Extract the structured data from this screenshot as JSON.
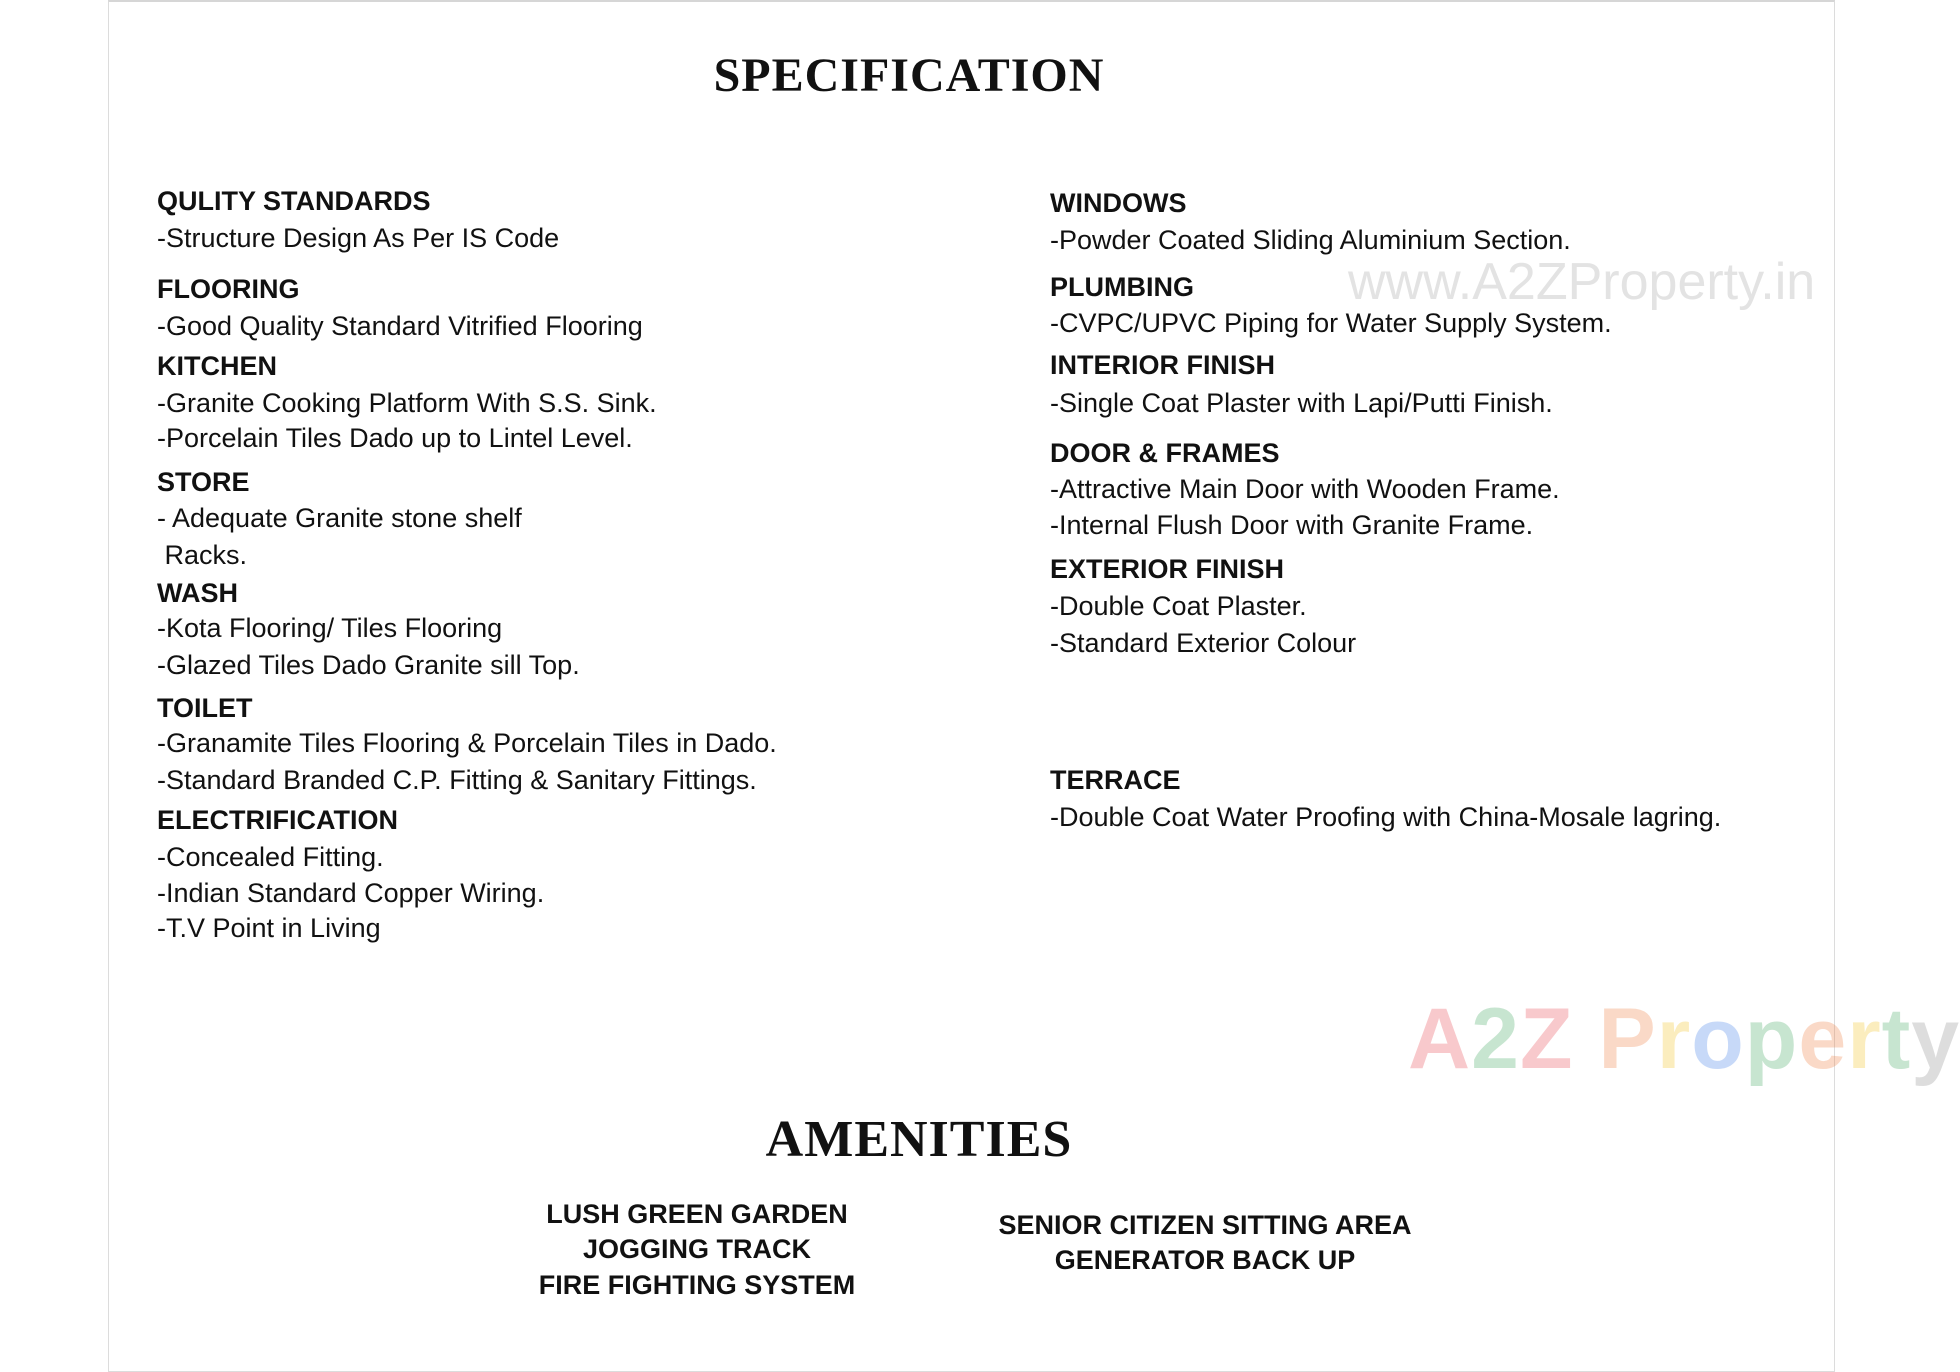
{
  "title": "SPECIFICATION",
  "left_sections": [
    {
      "heading": "QULITY STANDARDS",
      "lines": [
        "-Structure Design As Per IS Code"
      ]
    },
    {
      "heading": "FLOORING",
      "lines": [
        "-Good Quality Standard Vitrified Flooring"
      ]
    },
    {
      "heading": "KITCHEN",
      "lines": [
        "-Granite Cooking Platform With S.S. Sink.",
        "-Porcelain Tiles Dado up to Lintel Level."
      ]
    },
    {
      "heading": "STORE",
      "lines": [
        "- Adequate Granite stone shelf",
        " Racks."
      ]
    },
    {
      "heading": "WASH",
      "lines": [
        "-Kota Flooring/ Tiles Flooring",
        "-Glazed Tiles Dado Granite sill Top."
      ]
    },
    {
      "heading": "TOILET",
      "lines": [
        "-Granamite Tiles Flooring & Porcelain Tiles in Dado.",
        "-Standard Branded C.P. Fitting & Sanitary Fittings."
      ]
    },
    {
      "heading": "ELECTRIFICATION",
      "lines": [
        "-Concealed Fitting.",
        "-Indian Standard Copper Wiring.",
        "-T.V Point in Living"
      ]
    }
  ],
  "right_sections": [
    {
      "heading": "WINDOWS",
      "lines": [
        "-Powder Coated Sliding Aluminium Section."
      ]
    },
    {
      "heading": "PLUMBING",
      "lines": [
        "-CVPC/UPVC Piping for Water Supply System."
      ]
    },
    {
      "heading": "INTERIOR FINISH",
      "lines": [
        "-Single Coat Plaster with Lapi/Putti Finish."
      ]
    },
    {
      "heading": "DOOR & FRAMES",
      "lines": [
        "-Attractive Main Door with Wooden Frame.",
        "-Internal Flush Door with Granite Frame."
      ]
    },
    {
      "heading": "EXTERIOR FINISH",
      "lines": [
        "-Double Coat Plaster.",
        "-Standard Exterior Colour"
      ]
    },
    {
      "heading": "TERRACE",
      "lines": [
        "-Double Coat Water Proofing with China-Mosale lagring."
      ]
    }
  ],
  "amenities": {
    "title": "AMENITIES",
    "left": [
      "LUSH GREEN GARDEN",
      "JOGGING TRACK",
      "FIRE FIGHTING SYSTEM"
    ],
    "right": [
      "SENIOR CITIZEN SITTING AREA",
      "GENERATOR BACK UP"
    ]
  },
  "watermark": "www.A2ZProperty.in",
  "logo": {
    "text": "A2Z Property",
    "colors": [
      "#e8404a",
      "#3aa35a",
      "#e8404a",
      "#3b7be8",
      "#f07a3a",
      "#f2c21a",
      "#3b7be8",
      "#3aa35a",
      "#f07a3a",
      "#f2c21a",
      "#3aa35a"
    ]
  }
}
